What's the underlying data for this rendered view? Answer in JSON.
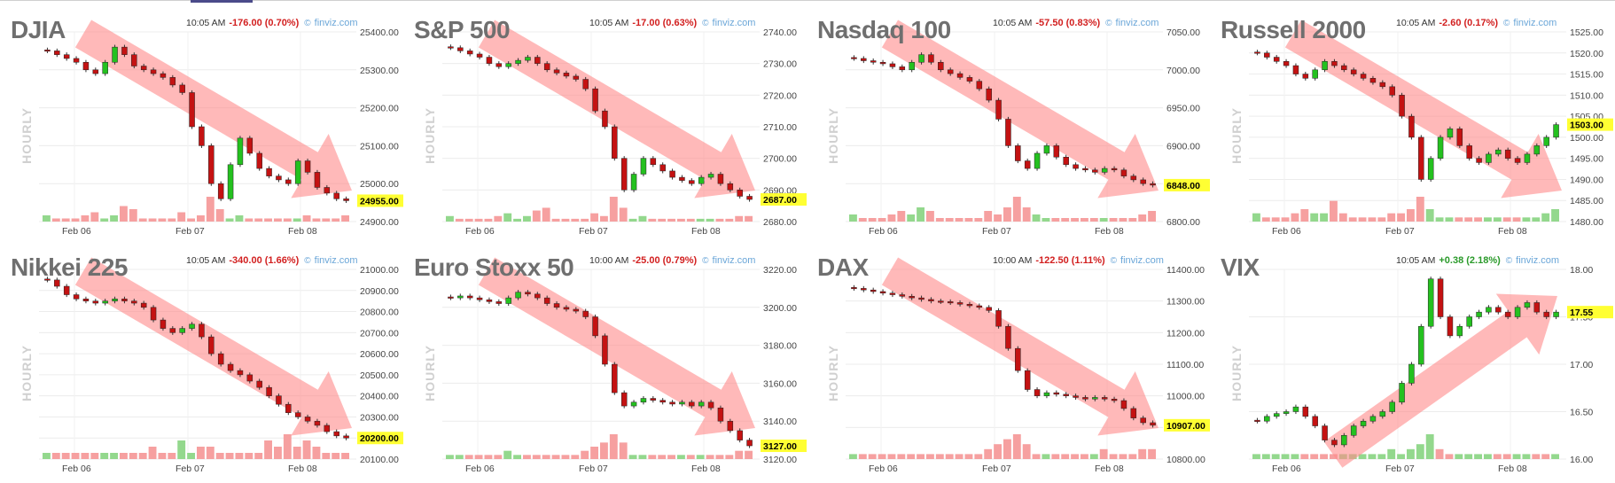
{
  "colors": {
    "up": "#24c11f",
    "down": "#c41212",
    "arrow": "#ff8a8a",
    "price_tag": "#ffff33",
    "vol_up": "#93d88d",
    "vol_down": "#f6a0a0",
    "neg_text": "#d21f1f",
    "pos_text": "#2a9a2a",
    "title": "#6f6f6f"
  },
  "chart_data": [
    {
      "type": "candlestick",
      "title": "DJIA",
      "time": "10:05 AM",
      "change": "-176.00 (0.70%)",
      "change_sign": "neg",
      "source": "finviz.com",
      "side_label": "HOURLY",
      "x_ticks": [
        "Feb 06",
        "Feb 07",
        "Feb 08"
      ],
      "y_ticks": [
        "25400.00",
        "25300.00",
        "25200.00",
        "25100.00",
        "25000.00",
        "24900.00"
      ],
      "ylim": [
        24900,
        25400
      ],
      "last_price": "24955.00",
      "trend": "down",
      "path": [
        25350,
        25340,
        25330,
        25320,
        25300,
        25290,
        25320,
        25360,
        25340,
        25310,
        25300,
        25290,
        25280,
        25260,
        25240,
        25150,
        25100,
        25000,
        24960,
        25050,
        25120,
        25080,
        25040,
        25020,
        25010,
        25000,
        25060,
        25030,
        24990,
        24975,
        24960,
        24955
      ],
      "volume": [
        2,
        1,
        1,
        1,
        2,
        3,
        1,
        2,
        5,
        4,
        1,
        1,
        1,
        1,
        3,
        1,
        2,
        8,
        4,
        1,
        2,
        1,
        1,
        1,
        1,
        1,
        1,
        2,
        1,
        1,
        1,
        2
      ]
    },
    {
      "type": "candlestick",
      "title": "S&P 500",
      "time": "10:05 AM",
      "change": "-17.00 (0.63%)",
      "change_sign": "neg",
      "source": "finviz.com",
      "side_label": "HOURLY",
      "x_ticks": [
        "Feb 06",
        "Feb 07",
        "Feb 08"
      ],
      "y_ticks": [
        "2740.00",
        "2730.00",
        "2720.00",
        "2710.00",
        "2700.00",
        "2690.00",
        "2680.00"
      ],
      "ylim": [
        2680,
        2740
      ],
      "last_price": "2687.00",
      "trend": "down",
      "path": [
        2735,
        2734,
        2733,
        2732,
        2730,
        2729,
        2730,
        2731,
        2732,
        2730,
        2728,
        2727,
        2726,
        2725,
        2722,
        2715,
        2710,
        2700,
        2690,
        2695,
        2700,
        2698,
        2696,
        2694,
        2693,
        2692,
        2694,
        2695,
        2692,
        2690,
        2688,
        2687
      ],
      "volume": [
        2,
        1,
        1,
        1,
        1,
        2,
        3,
        1,
        2,
        4,
        5,
        1,
        1,
        1,
        1,
        3,
        2,
        9,
        5,
        1,
        2,
        1,
        1,
        1,
        1,
        1,
        1,
        1,
        1,
        1,
        2,
        2
      ]
    },
    {
      "type": "candlestick",
      "title": "Nasdaq 100",
      "time": "10:05 AM",
      "change": "-57.50 (0.83%)",
      "change_sign": "neg",
      "source": "finviz.com",
      "side_label": "HOURLY",
      "x_ticks": [
        "Feb 06",
        "Feb 07",
        "Feb 08"
      ],
      "y_ticks": [
        "7050.00",
        "7000.00",
        "6950.00",
        "6900.00",
        "6850.00",
        "6800.00"
      ],
      "ylim": [
        6800,
        7050
      ],
      "last_price": "6848.00",
      "trend": "down",
      "path": [
        7015,
        7012,
        7010,
        7008,
        7004,
        7000,
        7010,
        7020,
        7010,
        7000,
        6995,
        6990,
        6985,
        6975,
        6960,
        6935,
        6900,
        6880,
        6870,
        6890,
        6900,
        6885,
        6875,
        6870,
        6868,
        6865,
        6870,
        6868,
        6860,
        6855,
        6850,
        6848
      ],
      "volume": [
        2,
        1,
        1,
        1,
        2,
        3,
        2,
        4,
        3,
        1,
        1,
        1,
        1,
        1,
        3,
        2,
        4,
        7,
        4,
        2,
        1,
        1,
        1,
        1,
        1,
        1,
        1,
        1,
        1,
        1,
        2,
        3
      ]
    },
    {
      "type": "candlestick",
      "title": "Russell 2000",
      "time": "10:05 AM",
      "change": "-2.60 (0.17%)",
      "change_sign": "neg",
      "source": "finviz.com",
      "side_label": "HOURLY",
      "x_ticks": [
        "Feb 06",
        "Feb 07",
        "Feb 08"
      ],
      "y_ticks": [
        "1525.00",
        "1520.00",
        "1515.00",
        "1510.00",
        "1505.00",
        "1500.00",
        "1495.00",
        "1490.00",
        "1485.00",
        "1480.00"
      ],
      "ylim": [
        1480,
        1525
      ],
      "last_price": "1503.00",
      "trend": "down-then-up",
      "path": [
        1520,
        1519,
        1518,
        1517,
        1515,
        1514,
        1516,
        1518,
        1517,
        1516,
        1515,
        1514,
        1513,
        1512,
        1510,
        1505,
        1500,
        1490,
        1495,
        1500,
        1502,
        1498,
        1495,
        1494,
        1496,
        1497,
        1495,
        1494,
        1496,
        1498,
        1500,
        1503
      ],
      "volume": [
        2,
        1,
        1,
        1,
        2,
        3,
        2,
        2,
        5,
        2,
        1,
        1,
        1,
        1,
        2,
        2,
        3,
        6,
        3,
        1,
        1,
        1,
        1,
        1,
        1,
        1,
        1,
        1,
        1,
        1,
        2,
        3
      ]
    },
    {
      "type": "candlestick",
      "title": "Nikkei 225",
      "time": "10:05 AM",
      "change": "-340.00 (1.66%)",
      "change_sign": "neg",
      "source": "finviz.com",
      "side_label": "HOURLY",
      "x_ticks": [
        "Feb 06",
        "Feb 07",
        "Feb 08"
      ],
      "y_ticks": [
        "21000.00",
        "20900.00",
        "20800.00",
        "20700.00",
        "20600.00",
        "20500.00",
        "20400.00",
        "20300.00",
        "20200.00",
        "20100.00"
      ],
      "ylim": [
        20100,
        21000
      ],
      "last_price": "20200.00",
      "trend": "down",
      "path": [
        20950,
        20920,
        20880,
        20860,
        20850,
        20840,
        20850,
        20860,
        20850,
        20840,
        20820,
        20760,
        20720,
        20700,
        20720,
        20740,
        20680,
        20600,
        20550,
        20520,
        20500,
        20470,
        20440,
        20400,
        20360,
        20320,
        20300,
        20280,
        20260,
        20230,
        20210,
        20200
      ],
      "volume": [
        1,
        1,
        1,
        1,
        1,
        1,
        1,
        1,
        1,
        1,
        1,
        2,
        1,
        1,
        3,
        1,
        2,
        2,
        1,
        1,
        1,
        1,
        1,
        3,
        2,
        4,
        2,
        3,
        2,
        1,
        1,
        1
      ]
    },
    {
      "type": "candlestick",
      "title": "Euro Stoxx 50",
      "time": "10:00 AM",
      "change": "-25.00 (0.79%)",
      "change_sign": "neg",
      "source": "finviz.com",
      "side_label": "HOURLY",
      "x_ticks": [
        "Feb 06",
        "Feb 07",
        "Feb 08"
      ],
      "y_ticks": [
        "3220.00",
        "3200.00",
        "3180.00",
        "3160.00",
        "3140.00",
        "3120.00"
      ],
      "ylim": [
        3120,
        3220
      ],
      "last_price": "3127.00",
      "trend": "down",
      "path": [
        3205,
        3206,
        3205,
        3204,
        3203,
        3202,
        3205,
        3208,
        3207,
        3205,
        3202,
        3200,
        3199,
        3198,
        3195,
        3185,
        3170,
        3155,
        3148,
        3150,
        3152,
        3151,
        3150,
        3149,
        3150,
        3148,
        3150,
        3147,
        3140,
        3135,
        3130,
        3127
      ],
      "volume": [
        1,
        1,
        1,
        1,
        1,
        1,
        2,
        1,
        1,
        1,
        1,
        1,
        1,
        1,
        2,
        3,
        4,
        6,
        4,
        1,
        1,
        1,
        1,
        1,
        1,
        1,
        1,
        1,
        1,
        1,
        2,
        2
      ]
    },
    {
      "type": "candlestick",
      "title": "DAX",
      "time": "10:00 AM",
      "change": "-122.50 (1.11%)",
      "change_sign": "neg",
      "source": "finviz.com",
      "side_label": "HOURLY",
      "x_ticks": [
        "Feb 06",
        "Feb 07",
        "Feb 08"
      ],
      "y_ticks": [
        "11400.00",
        "11300.00",
        "11200.00",
        "11100.00",
        "11000.00",
        "10900.00",
        "10800.00"
      ],
      "ylim": [
        10800,
        11400
      ],
      "last_price": "10907.00",
      "trend": "down",
      "path": [
        11340,
        11335,
        11330,
        11325,
        11320,
        11315,
        11310,
        11305,
        11300,
        11298,
        11295,
        11290,
        11285,
        11280,
        11270,
        11220,
        11150,
        11080,
        11020,
        11000,
        11010,
        11005,
        11000,
        10995,
        10990,
        10995,
        10990,
        10985,
        10960,
        10930,
        10915,
        10907
      ],
      "volume": [
        1,
        1,
        1,
        1,
        1,
        1,
        1,
        1,
        1,
        1,
        1,
        1,
        1,
        1,
        2,
        3,
        4,
        5,
        3,
        1,
        1,
        1,
        1,
        1,
        1,
        1,
        2,
        1,
        1,
        1,
        2,
        2
      ]
    },
    {
      "type": "candlestick",
      "title": "VIX",
      "time": "10:05 AM",
      "change": "+0.38 (2.18%)",
      "change_sign": "pos",
      "source": "finviz.com",
      "side_label": "HOURLY",
      "x_ticks": [
        "Feb 06",
        "Feb 07",
        "Feb 08"
      ],
      "y_ticks": [
        "18.00",
        "17.50",
        "17.00",
        "16.50",
        "16.00"
      ],
      "ylim": [
        16.0,
        18.0
      ],
      "last_price": "17.55",
      "trend": "up",
      "path": [
        16.4,
        16.45,
        16.48,
        16.5,
        16.55,
        16.45,
        16.35,
        16.2,
        16.15,
        16.25,
        16.35,
        16.4,
        16.45,
        16.5,
        16.6,
        16.8,
        17.0,
        17.4,
        17.9,
        17.5,
        17.3,
        17.4,
        17.5,
        17.55,
        17.6,
        17.55,
        17.5,
        17.6,
        17.65,
        17.55,
        17.5,
        17.55
      ],
      "volume": [
        1,
        1,
        1,
        1,
        1,
        1,
        1,
        1,
        1,
        1,
        1,
        1,
        1,
        1,
        2,
        1,
        2,
        3,
        5,
        2,
        1,
        1,
        1,
        1,
        1,
        1,
        1,
        1,
        1,
        1,
        1,
        1
      ]
    }
  ]
}
